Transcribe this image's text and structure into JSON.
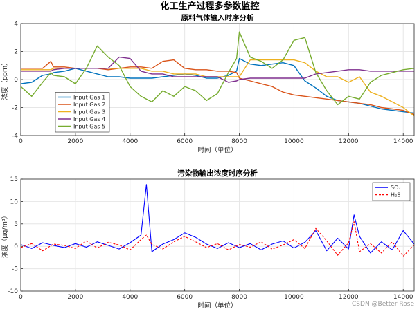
{
  "figure": {
    "title": "化工生产过程多参数监控",
    "watermark": "CSDN @Better Rose"
  },
  "chart_data": [
    {
      "type": "line",
      "title": "原料气体输入时序分析",
      "xlabel": "时间（单位）",
      "ylabel": "浓度（ppm）",
      "xlim": [
        0,
        14400
      ],
      "ylim": [
        -4,
        4
      ],
      "xticks": [
        0,
        2000,
        4000,
        6000,
        8000,
        10000,
        12000,
        14000
      ],
      "yticks": [
        -4,
        -2,
        0,
        2,
        4
      ],
      "grid": true,
      "legend_position": "bottom-left",
      "x": [
        0,
        400,
        800,
        1100,
        1200,
        1600,
        2000,
        2400,
        2800,
        3200,
        3600,
        4000,
        4400,
        4800,
        5200,
        5600,
        6000,
        6400,
        6800,
        7200,
        7600,
        7900,
        8000,
        8400,
        8800,
        9200,
        9600,
        10000,
        10400,
        10800,
        11200,
        11600,
        12000,
        12400,
        12800,
        13200,
        13600,
        14000,
        14400
      ],
      "series": [
        {
          "name": "Input Gas 1",
          "color": "#0072BD",
          "values": [
            -0.3,
            -0.2,
            0.3,
            0.4,
            0.5,
            0.6,
            0.8,
            0.6,
            0.4,
            0.2,
            0.2,
            0.1,
            0.1,
            0.1,
            0.2,
            0.3,
            0.4,
            0.3,
            0.1,
            0.1,
            0.3,
            0.6,
            1.5,
            1.1,
            1.0,
            1.1,
            1.2,
            1.0,
            -0.1,
            -0.6,
            -1.2,
            -1.5,
            -1.6,
            -1.7,
            -1.9,
            -2.1,
            -2.2,
            -2.3,
            -2.4
          ]
        },
        {
          "name": "Input Gas 2",
          "color": "#D95319",
          "values": [
            0.8,
            0.8,
            0.8,
            1.3,
            0.9,
            0.9,
            0.8,
            0.8,
            0.8,
            0.7,
            0.8,
            0.9,
            0.9,
            0.8,
            1.3,
            1.4,
            0.8,
            0.7,
            0.7,
            0.6,
            0.6,
            0.5,
            0.1,
            -0.1,
            -0.3,
            -0.5,
            -0.9,
            -1.1,
            -1.2,
            -1.3,
            -1.4,
            -1.5,
            -1.6,
            -1.7,
            -1.8,
            -2.0,
            -2.1,
            -2.2,
            -2.5
          ]
        },
        {
          "name": "Input Gas 3",
          "color": "#EDB120",
          "values": [
            0.7,
            0.7,
            0.7,
            0.7,
            0.8,
            0.8,
            0.8,
            0.8,
            0.8,
            0.8,
            0.8,
            0.8,
            0.8,
            0.6,
            0.6,
            0.4,
            0.4,
            0.4,
            0.2,
            0.2,
            0.2,
            0.2,
            0.2,
            1.4,
            1.4,
            1.4,
            1.4,
            1.4,
            1.2,
            0.6,
            0.2,
            0.2,
            -0.2,
            0.2,
            -0.9,
            -1.2,
            -1.6,
            -2.0,
            -2.6
          ]
        },
        {
          "name": "Input Gas 4",
          "color": "#7E2F8E",
          "values": [
            0.6,
            0.6,
            0.6,
            0.6,
            0.7,
            0.8,
            0.8,
            0.8,
            0.8,
            0.8,
            1.6,
            1.5,
            0.6,
            0.4,
            0.4,
            0.2,
            0.2,
            0.2,
            0.2,
            0.2,
            -0.2,
            -0.1,
            0.0,
            0.1,
            0.1,
            0.1,
            0.1,
            0.1,
            0.1,
            0.4,
            0.5,
            0.6,
            0.7,
            0.7,
            0.6,
            0.6,
            0.6,
            0.6,
            0.6
          ]
        },
        {
          "name": "Input Gas 5",
          "color": "#77AC30",
          "values": [
            -0.5,
            -1.2,
            -0.2,
            0.5,
            0.3,
            0.2,
            -0.3,
            0.8,
            2.4,
            1.6,
            1.0,
            -0.5,
            -1.2,
            -1.6,
            -0.8,
            -1.2,
            -0.5,
            -0.8,
            -1.5,
            -1.0,
            0.5,
            1.5,
            3.4,
            1.6,
            1.3,
            0.8,
            1.4,
            2.8,
            3.0,
            0.5,
            -0.8,
            -1.8,
            -1.2,
            -1.4,
            -0.2,
            0.3,
            0.5,
            0.7,
            0.8
          ]
        }
      ]
    },
    {
      "type": "line",
      "title": "污染物输出浓度时序分析",
      "xlabel": "时间（单位）",
      "ylabel": "浓度（μg/m³）",
      "xlim": [
        0,
        14400
      ],
      "ylim": [
        -10,
        15
      ],
      "xticks": [
        0,
        2000,
        4000,
        6000,
        8000,
        10000,
        12000,
        14000
      ],
      "yticks": [
        -10,
        -5,
        0,
        5,
        10,
        15
      ],
      "grid": true,
      "legend_position": "top-right",
      "x": [
        0,
        400,
        800,
        1200,
        1600,
        2000,
        2400,
        2800,
        3200,
        3600,
        4000,
        4400,
        4600,
        4800,
        5200,
        5600,
        6000,
        6400,
        6800,
        7200,
        7600,
        8000,
        8400,
        8800,
        9200,
        9600,
        10000,
        10400,
        10800,
        11200,
        11600,
        12000,
        12200,
        12400,
        12800,
        13200,
        13600,
        14000,
        14400
      ],
      "series": [
        {
          "name": "SO₂",
          "color": "#0000FF",
          "values": [
            0.4,
            -0.5,
            0.8,
            0.2,
            -0.3,
            0.6,
            -0.2,
            1.0,
            0.2,
            -0.6,
            0.8,
            2.5,
            13.8,
            -1.2,
            0.5,
            1.5,
            3.0,
            2.0,
            0.5,
            -0.5,
            0.8,
            -0.3,
            0.6,
            -0.8,
            0.5,
            1.2,
            -0.4,
            0.9,
            3.5,
            -1.0,
            1.8,
            -0.6,
            7.0,
            2.2,
            -1.5,
            1.0,
            -0.8,
            3.5,
            0.5
          ]
        },
        {
          "name": "H₂S",
          "color": "#FF0000",
          "values": [
            -0.3,
            0.6,
            -1.0,
            0.5,
            0.2,
            -0.5,
            1.2,
            -0.4,
            0.9,
            0.3,
            -0.8,
            1.5,
            2.5,
            0.4,
            -0.6,
            1.0,
            2.2,
            1.0,
            -0.3,
            0.6,
            -0.8,
            0.4,
            -0.2,
            1.0,
            -0.6,
            0.3,
            1.5,
            -0.5,
            4.0,
            1.2,
            -2.0,
            0.8,
            5.5,
            -1.2,
            0.6,
            -1.5,
            1.0,
            -2.2,
            0.3
          ]
        }
      ]
    }
  ]
}
